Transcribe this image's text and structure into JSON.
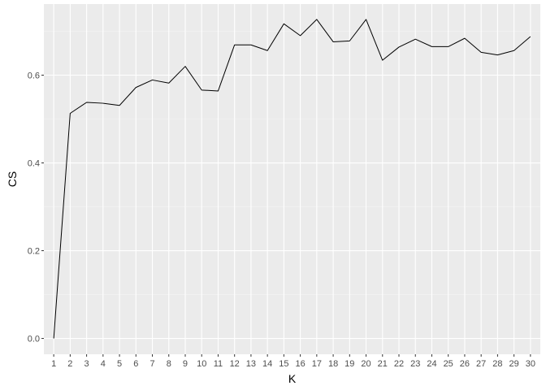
{
  "chart_data": {
    "type": "line",
    "title": "",
    "xlabel": "K",
    "ylabel": "CS",
    "x": [
      1,
      2,
      3,
      4,
      5,
      6,
      7,
      8,
      9,
      10,
      11,
      12,
      13,
      14,
      15,
      16,
      17,
      18,
      19,
      20,
      21,
      22,
      23,
      24,
      25,
      26,
      27,
      28,
      29,
      30
    ],
    "x_tick_labels": [
      "1",
      "2",
      "3",
      "4",
      "5",
      "6",
      "7",
      "8",
      "9",
      "10",
      "11",
      "12",
      "13",
      "14",
      "15",
      "16",
      "17",
      "18",
      "19",
      "20",
      "21",
      "22",
      "23",
      "24",
      "25",
      "26",
      "27",
      "28",
      "29",
      "30"
    ],
    "y_tick_labels": [
      "0.0",
      "0.2",
      "0.4",
      "0.6"
    ],
    "y_ticks": [
      0.0,
      0.2,
      0.4,
      0.6
    ],
    "xlim": [
      0.4,
      30.6
    ],
    "ylim": [
      -0.036,
      0.762
    ],
    "grid": true,
    "legend": "none",
    "colors": {
      "panel_background": "#ebebeb",
      "grid_major": "#ffffff",
      "grid_minor": "#f5f5f5",
      "line": "#000000",
      "tick_mark": "#333333"
    },
    "series": [
      {
        "values": [
          0.0,
          0.513,
          0.538,
          0.536,
          0.531,
          0.572,
          0.589,
          0.582,
          0.62,
          0.566,
          0.564,
          0.669,
          0.669,
          0.656,
          0.717,
          0.69,
          0.727,
          0.676,
          0.678,
          0.727,
          0.634,
          0.664,
          0.682,
          0.665,
          0.665,
          0.684,
          0.652,
          0.646,
          0.656,
          0.688
        ]
      }
    ]
  }
}
